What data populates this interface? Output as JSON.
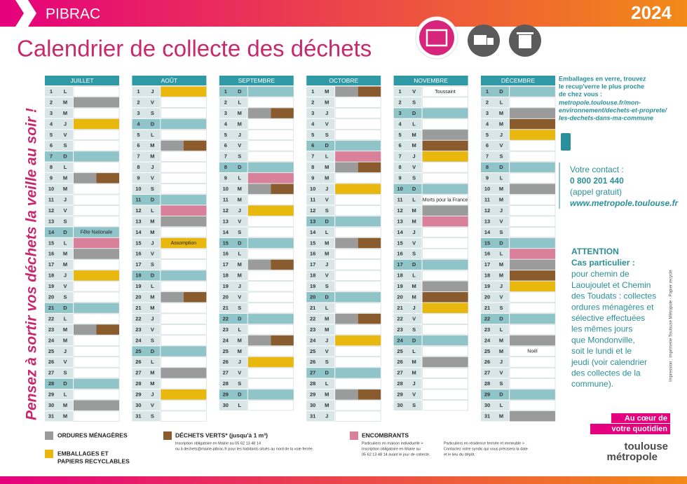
{
  "header": {
    "town": "PIBRAC",
    "year": "2024",
    "title": "Calendrier de collecte des déchets"
  },
  "reminder": "Pensez à sortir vos déchets la veille au soir !",
  "months": [
    {
      "name": "JUILLET",
      "days": [
        [
          "1",
          "L",
          []
        ],
        [
          "2",
          "M",
          [
            "om"
          ]
        ],
        [
          "3",
          "M",
          []
        ],
        [
          "4",
          "J",
          [
            "emb"
          ]
        ],
        [
          "5",
          "V",
          []
        ],
        [
          "6",
          "S",
          []
        ],
        [
          "7",
          "D",
          []
        ],
        [
          "8",
          "L",
          []
        ],
        [
          "9",
          "M",
          [
            "om",
            "verts"
          ]
        ],
        [
          "10",
          "M",
          []
        ],
        [
          "11",
          "J",
          []
        ],
        [
          "12",
          "V",
          []
        ],
        [
          "13",
          "S",
          []
        ],
        [
          "14",
          "D",
          [],
          "Fête Nationale"
        ],
        [
          "15",
          "L",
          [
            "enc"
          ]
        ],
        [
          "16",
          "M",
          [
            "om"
          ]
        ],
        [
          "17",
          "M",
          []
        ],
        [
          "18",
          "J",
          [
            "emb"
          ]
        ],
        [
          "19",
          "V",
          []
        ],
        [
          "20",
          "S",
          []
        ],
        [
          "21",
          "D",
          []
        ],
        [
          "22",
          "L",
          []
        ],
        [
          "23",
          "M",
          [
            "om",
            "verts"
          ]
        ],
        [
          "24",
          "M",
          []
        ],
        [
          "25",
          "J",
          []
        ],
        [
          "26",
          "V",
          []
        ],
        [
          "27",
          "S",
          []
        ],
        [
          "28",
          "D",
          []
        ],
        [
          "29",
          "L",
          []
        ],
        [
          "30",
          "M",
          [
            "om"
          ]
        ],
        [
          "31",
          "M",
          []
        ]
      ]
    },
    {
      "name": "AOÛT",
      "days": [
        [
          "1",
          "J",
          [
            "emb"
          ]
        ],
        [
          "2",
          "V",
          []
        ],
        [
          "3",
          "S",
          []
        ],
        [
          "4",
          "D",
          []
        ],
        [
          "5",
          "L",
          []
        ],
        [
          "6",
          "M",
          [
            "om",
            "verts"
          ]
        ],
        [
          "7",
          "M",
          []
        ],
        [
          "8",
          "J",
          []
        ],
        [
          "9",
          "V",
          []
        ],
        [
          "10",
          "S",
          []
        ],
        [
          "11",
          "D",
          []
        ],
        [
          "12",
          "L",
          [
            "enc"
          ]
        ],
        [
          "13",
          "M",
          [
            "om"
          ]
        ],
        [
          "14",
          "M",
          []
        ],
        [
          "15",
          "J",
          [
            "emb"
          ],
          "Assomption"
        ],
        [
          "16",
          "V",
          []
        ],
        [
          "17",
          "S",
          []
        ],
        [
          "18",
          "D",
          []
        ],
        [
          "19",
          "L",
          []
        ],
        [
          "20",
          "M",
          [
            "om",
            "verts"
          ]
        ],
        [
          "21",
          "M",
          []
        ],
        [
          "22",
          "J",
          []
        ],
        [
          "23",
          "V",
          []
        ],
        [
          "24",
          "S",
          []
        ],
        [
          "25",
          "D",
          []
        ],
        [
          "26",
          "L",
          []
        ],
        [
          "27",
          "M",
          [
            "om"
          ]
        ],
        [
          "28",
          "M",
          []
        ],
        [
          "29",
          "J",
          [
            "emb"
          ]
        ],
        [
          "30",
          "V",
          []
        ],
        [
          "31",
          "S",
          []
        ]
      ]
    },
    {
      "name": "SEPTEMBRE",
      "days": [
        [
          "1",
          "D",
          []
        ],
        [
          "2",
          "L",
          []
        ],
        [
          "3",
          "M",
          [
            "om",
            "verts"
          ]
        ],
        [
          "4",
          "M",
          []
        ],
        [
          "5",
          "J",
          []
        ],
        [
          "6",
          "V",
          []
        ],
        [
          "7",
          "S",
          []
        ],
        [
          "8",
          "D",
          []
        ],
        [
          "9",
          "L",
          [
            "enc"
          ]
        ],
        [
          "10",
          "M",
          [
            "om",
            "verts"
          ]
        ],
        [
          "11",
          "M",
          []
        ],
        [
          "12",
          "J",
          [
            "emb"
          ]
        ],
        [
          "13",
          "V",
          []
        ],
        [
          "14",
          "S",
          []
        ],
        [
          "15",
          "D",
          []
        ],
        [
          "16",
          "L",
          []
        ],
        [
          "17",
          "M",
          [
            "om",
            "verts"
          ]
        ],
        [
          "18",
          "M",
          []
        ],
        [
          "19",
          "J",
          []
        ],
        [
          "20",
          "V",
          []
        ],
        [
          "21",
          "S",
          []
        ],
        [
          "22",
          "D",
          []
        ],
        [
          "23",
          "L",
          []
        ],
        [
          "24",
          "M",
          [
            "om",
            "verts"
          ]
        ],
        [
          "25",
          "M",
          []
        ],
        [
          "26",
          "J",
          [
            "emb"
          ]
        ],
        [
          "27",
          "V",
          []
        ],
        [
          "28",
          "S",
          []
        ],
        [
          "29",
          "D",
          []
        ],
        [
          "30",
          "L",
          []
        ]
      ]
    },
    {
      "name": "OCTOBRE",
      "days": [
        [
          "1",
          "M",
          [
            "om",
            "verts"
          ]
        ],
        [
          "2",
          "M",
          []
        ],
        [
          "3",
          "J",
          []
        ],
        [
          "4",
          "V",
          []
        ],
        [
          "5",
          "S",
          []
        ],
        [
          "6",
          "D",
          []
        ],
        [
          "7",
          "L",
          [
            "enc"
          ]
        ],
        [
          "8",
          "M",
          [
            "om",
            "verts"
          ]
        ],
        [
          "9",
          "M",
          []
        ],
        [
          "10",
          "J",
          [
            "emb"
          ]
        ],
        [
          "11",
          "V",
          []
        ],
        [
          "12",
          "S",
          []
        ],
        [
          "13",
          "D",
          []
        ],
        [
          "14",
          "L",
          []
        ],
        [
          "15",
          "M",
          [
            "om",
            "verts"
          ]
        ],
        [
          "16",
          "M",
          []
        ],
        [
          "17",
          "J",
          []
        ],
        [
          "18",
          "V",
          []
        ],
        [
          "19",
          "S",
          []
        ],
        [
          "20",
          "D",
          []
        ],
        [
          "21",
          "L",
          []
        ],
        [
          "22",
          "M",
          [
            "om",
            "verts"
          ]
        ],
        [
          "23",
          "M",
          []
        ],
        [
          "24",
          "J",
          [
            "emb"
          ]
        ],
        [
          "25",
          "V",
          []
        ],
        [
          "26",
          "S",
          []
        ],
        [
          "27",
          "D",
          []
        ],
        [
          "28",
          "L",
          []
        ],
        [
          "29",
          "M",
          [
            "om",
            "verts"
          ]
        ],
        [
          "30",
          "M",
          []
        ],
        [
          "31",
          "J",
          []
        ]
      ]
    },
    {
      "name": "NOVEMBRE",
      "days": [
        [
          "1",
          "V",
          [],
          "Toussaint"
        ],
        [
          "2",
          "S",
          []
        ],
        [
          "3",
          "D",
          []
        ],
        [
          "4",
          "L",
          []
        ],
        [
          "5",
          "M",
          [
            "om"
          ]
        ],
        [
          "6",
          "M",
          [
            "verts"
          ]
        ],
        [
          "7",
          "J",
          [
            "emb"
          ]
        ],
        [
          "8",
          "V",
          []
        ],
        [
          "9",
          "S",
          []
        ],
        [
          "10",
          "D",
          []
        ],
        [
          "11",
          "L",
          [],
          "Morts pour la France"
        ],
        [
          "12",
          "M",
          [
            "om"
          ]
        ],
        [
          "13",
          "M",
          [
            "enc"
          ]
        ],
        [
          "14",
          "J",
          []
        ],
        [
          "15",
          "V",
          []
        ],
        [
          "16",
          "S",
          []
        ],
        [
          "17",
          "D",
          []
        ],
        [
          "18",
          "L",
          []
        ],
        [
          "19",
          "M",
          [
            "om"
          ]
        ],
        [
          "20",
          "M",
          [
            "verts"
          ]
        ],
        [
          "21",
          "J",
          [
            "emb"
          ]
        ],
        [
          "22",
          "V",
          []
        ],
        [
          "23",
          "S",
          []
        ],
        [
          "24",
          "D",
          []
        ],
        [
          "25",
          "L",
          []
        ],
        [
          "26",
          "M",
          [
            "om"
          ]
        ],
        [
          "27",
          "M",
          []
        ],
        [
          "28",
          "J",
          []
        ],
        [
          "29",
          "V",
          []
        ],
        [
          "30",
          "S",
          []
        ]
      ]
    },
    {
      "name": "DÉCEMBRE",
      "days": [
        [
          "1",
          "D",
          []
        ],
        [
          "2",
          "L",
          []
        ],
        [
          "3",
          "M",
          [
            "om"
          ]
        ],
        [
          "4",
          "M",
          [
            "verts"
          ]
        ],
        [
          "5",
          "J",
          [
            "emb"
          ]
        ],
        [
          "6",
          "V",
          []
        ],
        [
          "7",
          "S",
          []
        ],
        [
          "8",
          "D",
          []
        ],
        [
          "9",
          "L",
          []
        ],
        [
          "10",
          "M",
          [
            "om"
          ]
        ],
        [
          "11",
          "M",
          []
        ],
        [
          "12",
          "J",
          []
        ],
        [
          "13",
          "V",
          []
        ],
        [
          "14",
          "S",
          []
        ],
        [
          "15",
          "D",
          []
        ],
        [
          "16",
          "L",
          [
            "enc"
          ]
        ],
        [
          "17",
          "M",
          [
            "om"
          ]
        ],
        [
          "18",
          "M",
          [
            "verts"
          ]
        ],
        [
          "19",
          "J",
          [
            "emb"
          ]
        ],
        [
          "20",
          "V",
          []
        ],
        [
          "21",
          "S",
          []
        ],
        [
          "22",
          "D",
          []
        ],
        [
          "23",
          "L",
          []
        ],
        [
          "24",
          "M",
          [
            "om"
          ]
        ],
        [
          "25",
          "M",
          [],
          "Noël"
        ],
        [
          "26",
          "J",
          []
        ],
        [
          "27",
          "V",
          []
        ],
        [
          "28",
          "S",
          []
        ],
        [
          "29",
          "D",
          []
        ],
        [
          "30",
          "L",
          []
        ],
        [
          "31",
          "M",
          [
            "om"
          ]
        ]
      ]
    }
  ],
  "colors": {
    "om": "#9b9b9b",
    "emb": "#e9b80e",
    "verts": "#8a5b2c",
    "enc": "#d9809b"
  },
  "info": {
    "glass": [
      "Emballages en verre, trouvez",
      "le recup'verre le plus proche",
      "de chez vous :"
    ],
    "glass_link": [
      "metropole.toulouse.fr/mon-",
      "environnement/dechets-et-proprete/",
      "les-dechets-dans-ma-commune"
    ],
    "contact": [
      "Votre contact :",
      "0 800 201 440",
      "(appel gratuit)",
      "www.metropole.toulouse.fr"
    ],
    "attention": [
      "ATTENTION",
      "Cas particulier :"
    ],
    "case": [
      "pour chemin de",
      "Laoujoulet et Chemin",
      "des Toudats : collectes",
      "ordures ménagères et",
      "sélective effectuées",
      "les mêmes jours",
      "que Mondonville,",
      "soit le lundi et le",
      "jeudi (voir calendrier",
      "des collectes de la",
      "commune)."
    ],
    "print": "Impression : imprimerie Toulouse Métropole - Papier recyclé"
  },
  "legend": {
    "om": [
      "ORDURES MÉNAGÈRES"
    ],
    "emb": [
      "EMBALLAGES ET",
      "PAPIERS RECYCLABLES"
    ],
    "verts": [
      "DÉCHETS VERTS* (jusqu'à 1 m³)"
    ],
    "verts_note": [
      "Inscription obligatoire en Mairie au 05 62 13 48 14",
      "ou à dechets@mairie-pibrac.fr pour les habitants situés au nord de la voie ferrée."
    ],
    "enc": [
      "ENCOMBRANTS"
    ],
    "enc_note": [
      "Particuliers en maison individuelle >",
      "Inscription obligatoire en Mairie au",
      "05 62 13 48 14 avant le jour de collecte."
    ],
    "enc_note2": [
      "Particuliers en résidence fermée et immeuble >",
      "Contactez votre syndic qui vous précisera la date",
      "et le lieu du dépôt."
    ]
  },
  "logo": {
    "slogan": [
      "Au cœur de",
      "votre quotidien"
    ],
    "name": [
      "toulouse",
      "métropole"
    ]
  }
}
